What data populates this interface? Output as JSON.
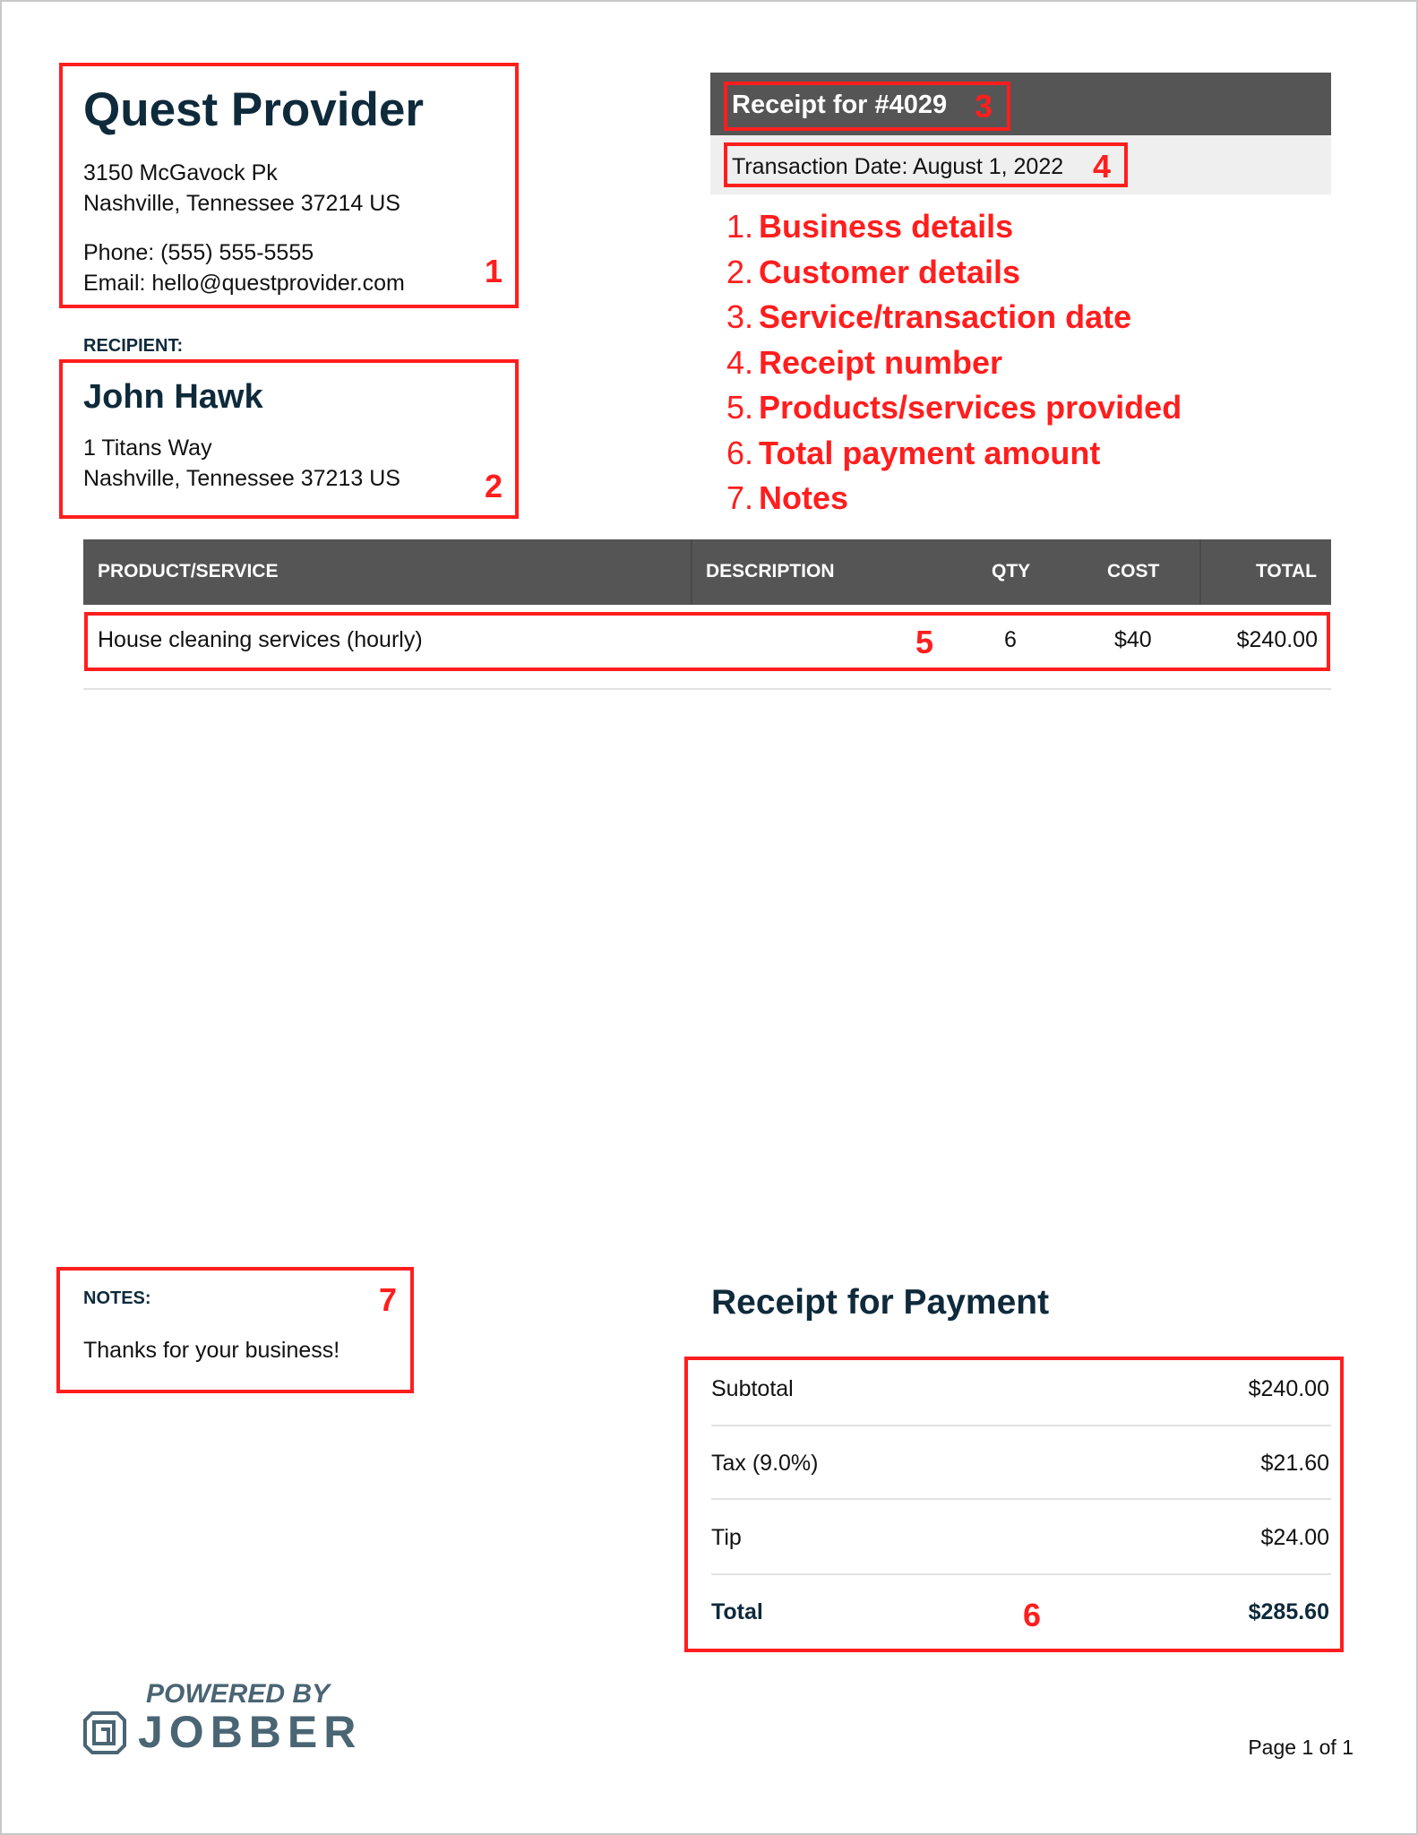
{
  "business": {
    "name": "Quest Provider",
    "address_line1": "3150 McGavock Pk",
    "address_line2": "Nashville, Tennessee 37214 US",
    "phone": "Phone: (555) 555-5555",
    "email": "Email: hello@questprovider.com"
  },
  "recipient": {
    "label": "RECIPIENT:",
    "name": "John Hawk",
    "address_line1": "1 Titans Way",
    "address_line2": "Nashville, Tennessee 37213 US"
  },
  "receipt": {
    "title": "Receipt for #4029",
    "transaction_date": "Transaction Date: August 1, 2022"
  },
  "annotations": {
    "markers": [
      "1",
      "2",
      "3",
      "4",
      "5",
      "6",
      "7"
    ],
    "color": "#ff1e1e",
    "legend": [
      {
        "n": "1.",
        "label": "Business details"
      },
      {
        "n": "2.",
        "label": "Customer details"
      },
      {
        "n": "3.",
        "label": "Service/transaction date"
      },
      {
        "n": "4.",
        "label": "Receipt number"
      },
      {
        "n": "5.",
        "label": "Products/services provided"
      },
      {
        "n": "6.",
        "label": "Total payment amount"
      },
      {
        "n": "7.",
        "label": "Notes"
      }
    ]
  },
  "table": {
    "headers": [
      "PRODUCT/SERVICE",
      "DESCRIPTION",
      "QTY",
      "COST",
      "TOTAL"
    ],
    "rows": [
      {
        "product": "House cleaning services (hourly)",
        "description": "",
        "qty": "6",
        "cost": "$40",
        "total": "$240.00"
      }
    ]
  },
  "notes": {
    "label": "NOTES:",
    "text": "Thanks for your business!"
  },
  "summary": {
    "title": "Receipt for Payment",
    "rows": [
      {
        "label": "Subtotal",
        "value": "$240.00"
      },
      {
        "label": "Tax (9.0%)",
        "value": "$21.60"
      },
      {
        "label": "Tip",
        "value": "$24.00"
      },
      {
        "label": "Total",
        "value": "$285.60"
      }
    ]
  },
  "footer": {
    "powered_by": "POWERED BY",
    "brand": "JOBBER",
    "page": "Page 1 of 1"
  },
  "colors": {
    "header_bg": "#555555",
    "text_navy": "#0e2a3b",
    "logo": "#4a6573"
  }
}
